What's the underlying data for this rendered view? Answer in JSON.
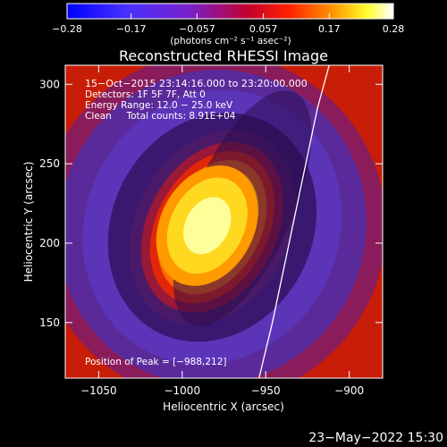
{
  "chart_data": {
    "type": "heatmap",
    "title": "Reconstructed RHESSI Image",
    "xlabel": "Heliocentric X (arcsec)",
    "ylabel": "Heliocentric Y (arcsec)",
    "xlim": [
      -1070,
      -880
    ],
    "ylim": [
      115,
      312
    ],
    "xticks": [
      {
        "value": -1050,
        "label": "−1050"
      },
      {
        "value": -1000,
        "label": "−1000"
      },
      {
        "value": -950,
        "label": "−950"
      },
      {
        "value": -900,
        "label": "−900"
      }
    ],
    "yticks": [
      {
        "value": 150,
        "label": "150"
      },
      {
        "value": 200,
        "label": "200"
      },
      {
        "value": 250,
        "label": "250"
      },
      {
        "value": 300,
        "label": "300"
      }
    ],
    "colorbar": {
      "range": [
        -0.28,
        0.28
      ],
      "ticks": [
        {
          "value": -0.28,
          "label": "−0.28"
        },
        {
          "value": -0.17,
          "label": "−0.17"
        },
        {
          "value": -0.057,
          "label": "−0.057"
        },
        {
          "value": 0.057,
          "label": "0.057"
        },
        {
          "value": 0.17,
          "label": "0.17"
        },
        {
          "value": 0.28,
          "label": "0.28"
        }
      ],
      "unit_label": "(photons cm⁻² s⁻¹ asec⁻²)"
    },
    "annotations": [
      "15−Oct−2015 23:14:16.000 to 23:20:00.000",
      "Detectors: 1F 5F 7F, Att 0",
      "Energy Range: 12.0 − 25.0 keV",
      "Clean     Total counts: 8.91E+04"
    ],
    "peak_label": "Position of Peak = [−988,212]",
    "peak": {
      "x": -988,
      "y": 212
    },
    "peak_value": 0.28,
    "limb_curve": {
      "x": [
        -954,
        -946,
        -939,
        -932,
        -925,
        -919,
        -912
      ],
      "y": [
        115,
        150,
        185,
        220,
        255,
        285,
        312
      ]
    },
    "timestamp": "23−May−2022 15:30"
  }
}
